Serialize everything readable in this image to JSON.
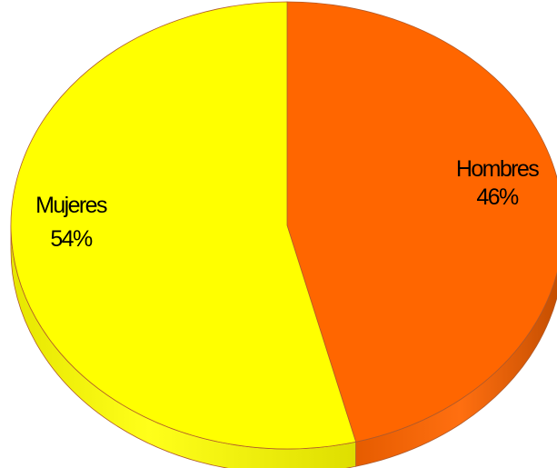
{
  "chart_data": {
    "type": "pie",
    "style": "3d",
    "slices": [
      {
        "name": "Hombres",
        "value": 46,
        "label_name": "Hombres",
        "label_pct": "46%",
        "color": "#ff6600",
        "side_color": "#cc5200"
      },
      {
        "name": "Mujeres",
        "value": 54,
        "label_name": "Mujeres",
        "label_pct": "54%",
        "color": "#ffff00",
        "side_color": "#d4d400"
      }
    ],
    "start_angle_deg": 0,
    "direction": "clockwise",
    "legend": "none",
    "edge_color": "#b05a2a"
  }
}
